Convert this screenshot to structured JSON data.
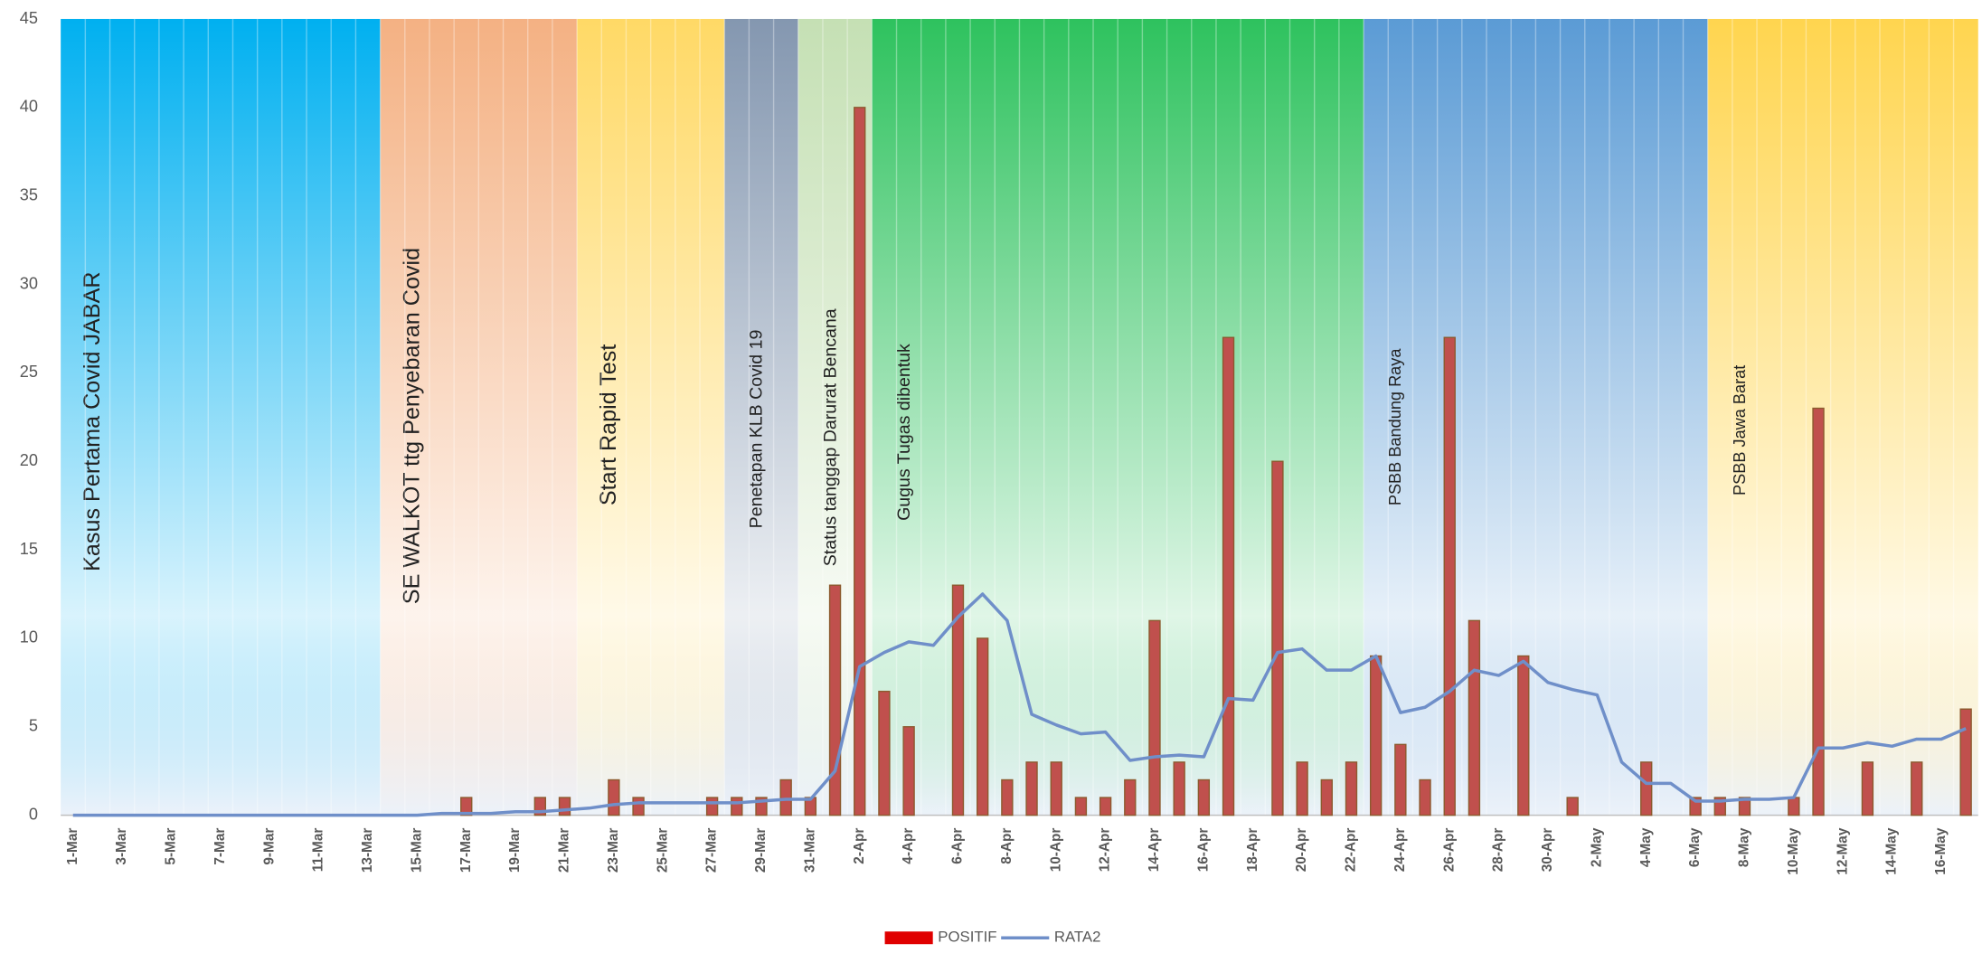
{
  "chart_data": {
    "type": "bar_line",
    "categories": [
      "1-Mar",
      null,
      "3-Mar",
      null,
      "5-Mar",
      null,
      "7-Mar",
      null,
      "9-Mar",
      null,
      "11-Mar",
      null,
      "13-Mar",
      null,
      "15-Mar",
      null,
      "17-Mar",
      null,
      "19-Mar",
      null,
      "21-Mar",
      null,
      "23-Mar",
      null,
      "25-Mar",
      null,
      "27-Mar",
      null,
      "29-Mar",
      null,
      "31-Mar",
      null,
      "2-Apr",
      null,
      "4-Apr",
      null,
      "6-Apr",
      null,
      "8-Apr",
      null,
      "10-Apr",
      null,
      "12-Apr",
      null,
      "14-Apr",
      null,
      "16-Apr",
      null,
      "18-Apr",
      null,
      "20-Apr",
      null,
      "22-Apr",
      null,
      "24-Apr",
      null,
      "26-Apr",
      null,
      "28-Apr",
      null,
      "30-Apr",
      null,
      "2-May",
      null,
      "4-May",
      null,
      "6-May",
      null,
      "8-May",
      null,
      "10-May",
      null,
      "12-May",
      null,
      "14-May",
      null,
      "16-May",
      null
    ],
    "series": [
      {
        "name": "POSITIF",
        "kind": "bar",
        "color": "#c0504d",
        "values": [
          0,
          0,
          0,
          0,
          0,
          0,
          0,
          0,
          0,
          0,
          0,
          0,
          0,
          0,
          0,
          0,
          1,
          0,
          0,
          1,
          1,
          0,
          2,
          1,
          0,
          0,
          1,
          1,
          1,
          2,
          1,
          13,
          40,
          7,
          5,
          0,
          13,
          10,
          2,
          3,
          3,
          1,
          1,
          2,
          11,
          3,
          2,
          27,
          0,
          20,
          3,
          2,
          3,
          9,
          4,
          2,
          27,
          11,
          0,
          9,
          0,
          1,
          0,
          0,
          3,
          0,
          1,
          1,
          1,
          0,
          1,
          23,
          0,
          3,
          0,
          3,
          0,
          6
        ]
      },
      {
        "name": "RATA2",
        "kind": "line",
        "color": "#6f8fc9",
        "values": [
          0,
          0,
          0,
          0,
          0,
          0,
          0,
          0,
          0,
          0,
          0,
          0,
          0,
          0,
          0,
          0.1,
          0.1,
          0.1,
          0.2,
          0.2,
          0.3,
          0.4,
          0.6,
          0.7,
          0.7,
          0.7,
          0.7,
          0.7,
          0.8,
          0.9,
          0.9,
          2.5,
          8.4,
          9.2,
          9.8,
          9.6,
          11.2,
          12.5,
          11,
          5.7,
          5.1,
          4.6,
          4.7,
          3.1,
          3.3,
          3.4,
          3.3,
          6.6,
          6.5,
          9.2,
          9.4,
          8.2,
          8.2,
          9,
          5.8,
          6.1,
          7,
          8.2,
          7.9,
          8.7,
          7.5,
          7.1,
          6.8,
          3,
          1.8,
          1.8,
          0.8,
          0.8,
          0.9,
          0.9,
          1,
          3.8,
          3.8,
          4.1,
          3.9,
          4.3,
          4.3,
          4.9
        ]
      }
    ],
    "phases": [
      {
        "label": "Kasus Pertama Covid JABAR",
        "from": 0,
        "to": 12,
        "color": "#00b0f0"
      },
      {
        "label": "SE WALKOT ttg Penyebaran Covid",
        "from": 13,
        "to": 20,
        "color": "#f4b183"
      },
      {
        "label": "Start Rapid Test",
        "from": 21,
        "to": 26,
        "color": "#ffd966"
      },
      {
        "label": "Penetapan KLB Covid 19",
        "from": 27,
        "to": 29,
        "color": "#8497b0"
      },
      {
        "label": "Status tanggap Darurat Bencana",
        "from": 30,
        "to": 32,
        "color": "#c5e0b4"
      },
      {
        "label": "Gugus Tugas dibentuk",
        "from": 33,
        "to": 52,
        "color": "#2ec25e"
      },
      {
        "label": "PSBB Bandung Raya",
        "from": 53,
        "to": 66,
        "color": "#5b9bd5"
      },
      {
        "label": "PSBB Jawa Barat",
        "from": 67,
        "to": 77,
        "color": "#ffd54f"
      }
    ],
    "ylim": [
      0,
      45
    ],
    "yticks": [
      0,
      5,
      10,
      15,
      20,
      25,
      30,
      35,
      40,
      45
    ],
    "legend": "bottom"
  }
}
